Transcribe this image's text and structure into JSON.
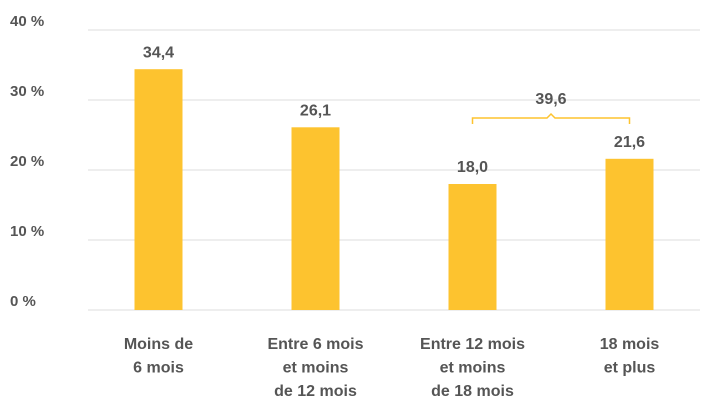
{
  "chart_data": {
    "type": "bar",
    "categories": [
      [
        "Moins de",
        "6 mois"
      ],
      [
        "Entre 6 mois",
        "et moins",
        "de 12 mois"
      ],
      [
        "Entre 12 mois",
        "et moins",
        "de 18 mois"
      ],
      [
        "18 mois",
        "et plus"
      ]
    ],
    "values": [
      34.4,
      26.1,
      18.0,
      21.6
    ],
    "value_labels": [
      "34,4",
      "26,1",
      "18,0",
      "21,6"
    ],
    "color": "#fdc32f",
    "ylim": [
      0,
      40
    ],
    "yticks": [
      {
        "value": 0,
        "label": "0 %"
      },
      {
        "value": 10,
        "label": "10 %"
      },
      {
        "value": 20,
        "label": "20 %"
      },
      {
        "value": 30,
        "label": "30 %"
      },
      {
        "value": 40,
        "label": "40 %"
      }
    ],
    "grid": true,
    "bracket": {
      "value": 39.6,
      "label": "39,6"
    }
  }
}
